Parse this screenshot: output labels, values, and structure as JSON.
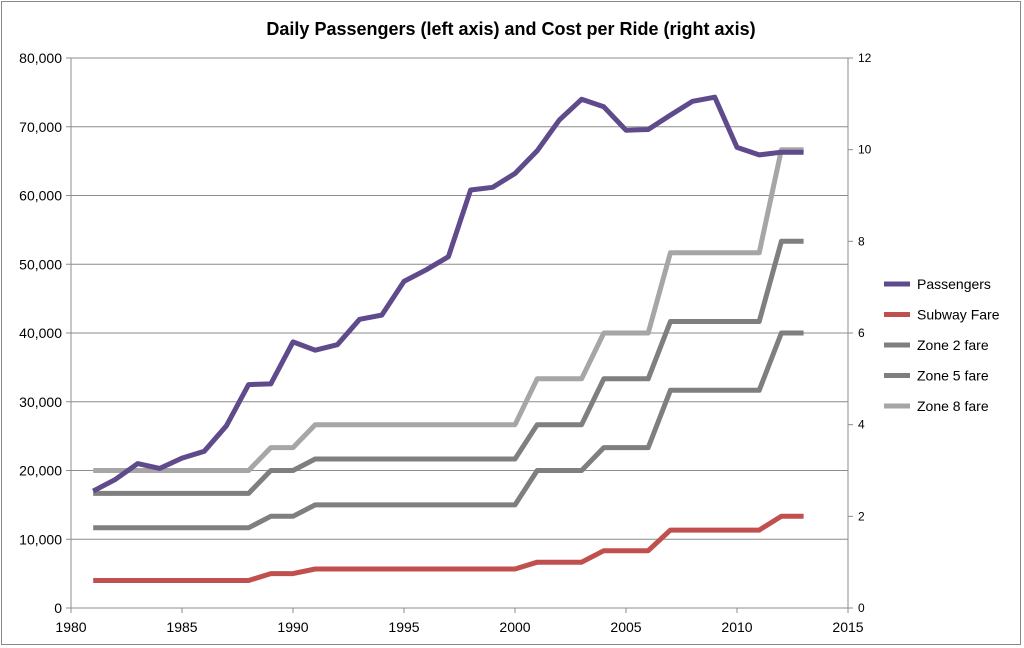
{
  "chart_data": {
    "type": "line",
    "title": "Daily Passengers (left axis) and Cost per Ride (right axis)",
    "xlabel": "",
    "ylabel": "",
    "xlim": [
      1980,
      2015
    ],
    "x_ticks": [
      "1980",
      "1985",
      "1990",
      "1995",
      "2000",
      "2005",
      "2010",
      "2015"
    ],
    "ylim_left": [
      0,
      80000
    ],
    "y_ticks_left": [
      "0",
      "10,000",
      "20,000",
      "30,000",
      "40,000",
      "50,000",
      "60,000",
      "70,000",
      "80,000"
    ],
    "ylim_right": [
      0,
      12
    ],
    "y_ticks_right": [
      "0",
      "2",
      "4",
      "6",
      "8",
      "10",
      "12"
    ],
    "grid": "horizontal",
    "legend_position": "right",
    "x": [
      1981,
      1982,
      1983,
      1984,
      1985,
      1986,
      1987,
      1988,
      1989,
      1990,
      1991,
      1992,
      1993,
      1994,
      1995,
      1996,
      1997,
      1998,
      1999,
      2000,
      2001,
      2002,
      2003,
      2004,
      2005,
      2006,
      2007,
      2008,
      2009,
      2010,
      2011,
      2012,
      2013
    ],
    "series": [
      {
        "name": "Passengers",
        "axis": "left",
        "color": "#5f4a8b",
        "values": [
          17000,
          18700,
          21000,
          20300,
          21800,
          22800,
          26500,
          32500,
          32600,
          38700,
          37500,
          38300,
          42000,
          42600,
          47500,
          49200,
          51100,
          60800,
          61200,
          63200,
          66500,
          71000,
          74000,
          72900,
          69500,
          69600,
          71700,
          73700,
          74300,
          67000,
          65900,
          66300,
          66300
        ]
      },
      {
        "name": "Subway Fare",
        "axis": "right",
        "color": "#c0504d",
        "values": [
          0.6,
          0.6,
          0.6,
          0.6,
          0.6,
          0.6,
          0.6,
          0.6,
          0.75,
          0.75,
          0.85,
          0.85,
          0.85,
          0.85,
          0.85,
          0.85,
          0.85,
          0.85,
          0.85,
          0.85,
          1.0,
          1.0,
          1.0,
          1.25,
          1.25,
          1.25,
          1.7,
          1.7,
          1.7,
          1.7,
          1.7,
          2.0,
          2.0
        ]
      },
      {
        "name": "Zone 2 fare",
        "axis": "right",
        "color": "#7f7f7f",
        "values": [
          1.75,
          1.75,
          1.75,
          1.75,
          1.75,
          1.75,
          1.75,
          1.75,
          2.0,
          2.0,
          2.25,
          2.25,
          2.25,
          2.25,
          2.25,
          2.25,
          2.25,
          2.25,
          2.25,
          2.25,
          3.0,
          3.0,
          3.0,
          3.5,
          3.5,
          3.5,
          4.75,
          4.75,
          4.75,
          4.75,
          4.75,
          6.0,
          6.0
        ]
      },
      {
        "name": "Zone 5 fare",
        "axis": "right",
        "color": "#7f7f7f",
        "values": [
          2.5,
          2.5,
          2.5,
          2.5,
          2.5,
          2.5,
          2.5,
          2.5,
          3.0,
          3.0,
          3.25,
          3.25,
          3.25,
          3.25,
          3.25,
          3.25,
          3.25,
          3.25,
          3.25,
          3.25,
          4.0,
          4.0,
          4.0,
          5.0,
          5.0,
          5.0,
          6.25,
          6.25,
          6.25,
          6.25,
          6.25,
          8.0,
          8.0
        ]
      },
      {
        "name": "Zone 8 fare",
        "axis": "right",
        "color": "#a6a6a6",
        "values": [
          3.0,
          3.0,
          3.0,
          3.0,
          3.0,
          3.0,
          3.0,
          3.0,
          3.5,
          3.5,
          4.0,
          4.0,
          4.0,
          4.0,
          4.0,
          4.0,
          4.0,
          4.0,
          4.0,
          4.0,
          5.0,
          5.0,
          5.0,
          6.0,
          6.0,
          6.0,
          7.75,
          7.75,
          7.75,
          7.75,
          7.75,
          10.0,
          10.0
        ]
      }
    ]
  }
}
